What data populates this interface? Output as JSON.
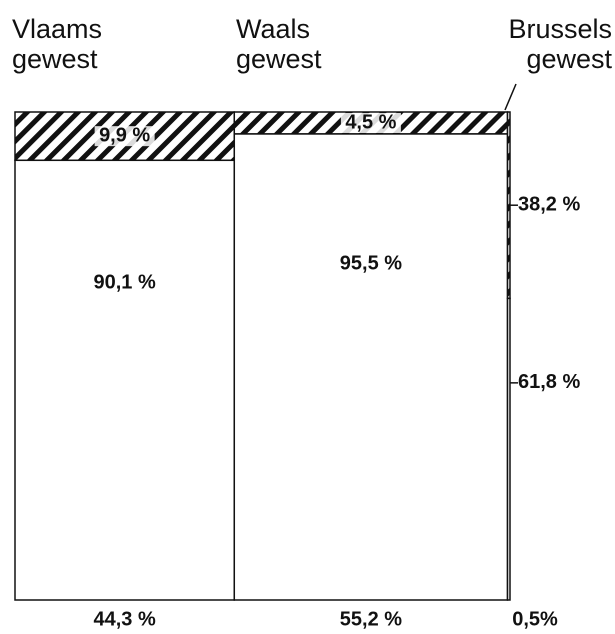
{
  "chart_data": {
    "type": "mosaic",
    "categories": [
      "Vlaams gewest",
      "Waals gewest",
      "Brussels gewest"
    ],
    "widths": [
      44.3,
      55.2,
      0.5
    ],
    "width_labels": [
      "44,3 %",
      "55,2 %",
      "0,5%"
    ],
    "series": [
      {
        "color": "#111111",
        "hatched": true,
        "values": [
          9.9,
          4.5,
          38.2
        ],
        "value_labels": [
          "9,9 %",
          "4,5 %",
          "38,2 %"
        ]
      },
      {
        "color": "#ffffff",
        "hatched": false,
        "values": [
          90.1,
          95.5,
          61.8
        ],
        "value_labels": [
          "90,1 %",
          "95,5 %",
          "61,8 %"
        ]
      }
    ]
  }
}
